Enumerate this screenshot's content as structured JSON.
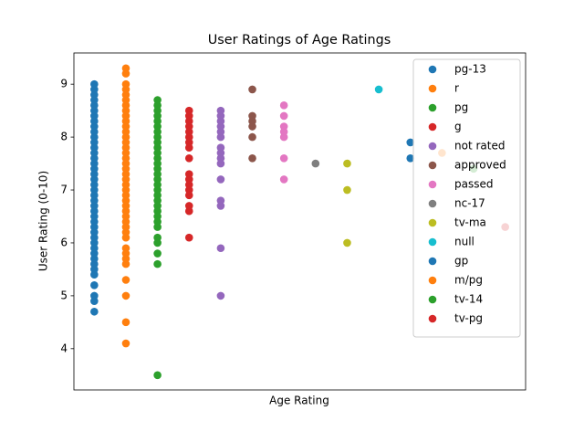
{
  "chart_data": {
    "type": "scatter",
    "title": "User Ratings of Age Ratings",
    "x_label": "Age Rating",
    "y_label": "User Rating (0-10)",
    "ylim": [
      3.22,
      9.59
    ],
    "yticks": [
      4,
      5,
      6,
      7,
      8,
      9
    ],
    "legend": "upper right",
    "series": [
      {
        "name": "pg-13",
        "color": "#1f77b4",
        "values": [
          4.7,
          4.9,
          5.0,
          5.2,
          5.4,
          5.5,
          5.6,
          5.7,
          5.8,
          5.9,
          6.0,
          6.1,
          6.2,
          6.3,
          6.4,
          6.5,
          6.6,
          6.7,
          6.8,
          6.9,
          7.0,
          7.1,
          7.2,
          7.3,
          7.4,
          7.5,
          7.6,
          7.7,
          7.8,
          7.9,
          8.0,
          8.1,
          8.2,
          8.3,
          8.4,
          8.5,
          8.6,
          8.7,
          8.8,
          8.9,
          9.0
        ]
      },
      {
        "name": "r",
        "color": "#ff7f0e",
        "values": [
          4.1,
          4.5,
          5.0,
          5.3,
          5.6,
          5.7,
          5.8,
          5.9,
          6.1,
          6.2,
          6.3,
          6.4,
          6.5,
          6.6,
          6.7,
          6.8,
          6.9,
          7.0,
          7.1,
          7.2,
          7.3,
          7.4,
          7.5,
          7.6,
          7.7,
          7.8,
          7.9,
          8.0,
          8.1,
          8.2,
          8.3,
          8.4,
          8.5,
          8.6,
          8.7,
          8.8,
          8.9,
          9.0,
          9.2,
          9.3
        ]
      },
      {
        "name": "pg",
        "color": "#2ca02c",
        "values": [
          3.5,
          5.6,
          5.8,
          6.0,
          6.1,
          6.3,
          6.4,
          6.5,
          6.6,
          6.7,
          6.8,
          6.9,
          7.0,
          7.1,
          7.2,
          7.3,
          7.4,
          7.5,
          7.6,
          7.7,
          7.8,
          7.9,
          8.0,
          8.1,
          8.2,
          8.3,
          8.4,
          8.5,
          8.6,
          8.7
        ]
      },
      {
        "name": "g",
        "color": "#d62728",
        "values": [
          6.1,
          6.6,
          6.7,
          6.9,
          7.0,
          7.1,
          7.2,
          7.3,
          7.6,
          7.8,
          7.9,
          8.0,
          8.1,
          8.2,
          8.3,
          8.4,
          8.5
        ]
      },
      {
        "name": "not rated",
        "color": "#9467bd",
        "values": [
          5.0,
          5.9,
          6.7,
          6.8,
          7.2,
          7.5,
          7.6,
          7.7,
          7.8,
          8.0,
          8.1,
          8.2,
          8.3,
          8.4,
          8.5
        ]
      },
      {
        "name": "approved",
        "color": "#8c564b",
        "values": [
          7.6,
          8.0,
          8.2,
          8.3,
          8.4,
          8.9
        ]
      },
      {
        "name": "passed",
        "color": "#e377c2",
        "values": [
          7.2,
          7.6,
          8.0,
          8.1,
          8.2,
          8.4,
          8.6
        ]
      },
      {
        "name": "nc-17",
        "color": "#7f7f7f",
        "values": [
          7.5
        ]
      },
      {
        "name": "tv-ma",
        "color": "#bcbd22",
        "values": [
          6.0,
          7.0,
          7.5
        ]
      },
      {
        "name": "null",
        "color": "#17becf",
        "values": [
          8.9
        ]
      },
      {
        "name": "gp",
        "color": "#1f77b4",
        "values": [
          7.6,
          7.9
        ]
      },
      {
        "name": "m/pg",
        "color": "#ff7f0e",
        "values": [
          7.7
        ]
      },
      {
        "name": "tv-14",
        "color": "#2ca02c",
        "values": [
          7.4
        ]
      },
      {
        "name": "tv-pg",
        "color": "#d62728",
        "values": [
          6.3
        ]
      }
    ]
  }
}
